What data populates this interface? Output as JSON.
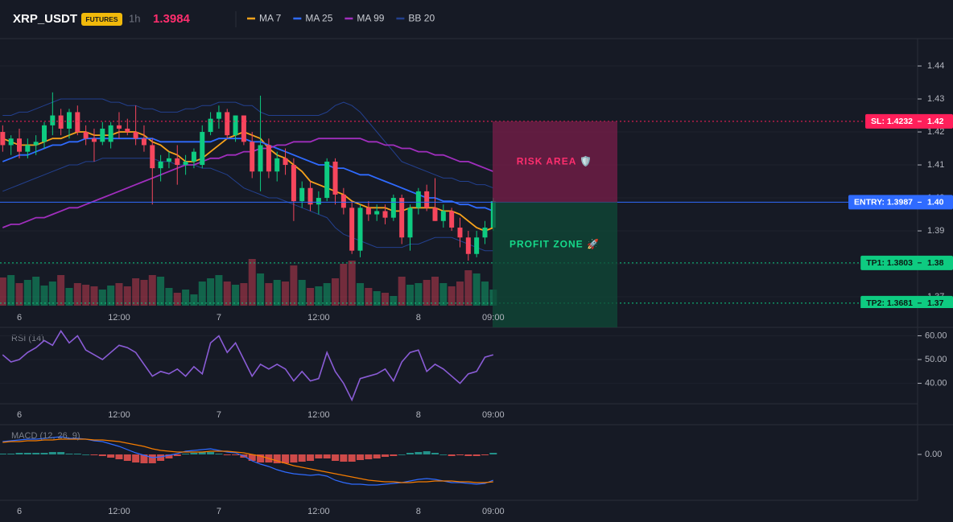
{
  "chart_data": [
    {
      "type": "candlestick",
      "title": "XRP_USDT",
      "badge": "FUTURES",
      "interval": "1h",
      "last_price": 1.3984,
      "last_price_color": "#ff2e6e",
      "categories": [
        null,
        null,
        "6",
        null,
        null,
        null,
        null,
        null,
        null,
        null,
        null,
        null,
        null,
        null,
        "12:00",
        null,
        null,
        null,
        null,
        null,
        null,
        null,
        null,
        null,
        null,
        null,
        "7",
        null,
        null,
        null,
        null,
        null,
        null,
        null,
        null,
        null,
        null,
        null,
        "12:00",
        null,
        null,
        null,
        null,
        null,
        null,
        null,
        null,
        null,
        null,
        null,
        "8",
        null,
        null,
        null,
        null,
        null,
        null,
        null,
        null,
        "09:00"
      ],
      "open": [
        1.42,
        1.416,
        1.418,
        1.414,
        1.416,
        1.417,
        1.422,
        1.425,
        1.421,
        1.426,
        1.42,
        1.418,
        1.417,
        1.417,
        1.422,
        1.421,
        1.42,
        1.418,
        1.416,
        1.409,
        1.411,
        1.412,
        1.41,
        1.411,
        1.41,
        1.42,
        1.424,
        1.426,
        1.419,
        1.425,
        1.417,
        1.408,
        1.416,
        1.408,
        1.412,
        1.41,
        1.399,
        1.403,
        1.398,
        1.4,
        1.411,
        1.401,
        1.397,
        1.384,
        1.397,
        1.395,
        1.396,
        1.394,
        1.4,
        1.388,
        1.397,
        1.402,
        1.397,
        1.393,
        1.396,
        1.391,
        1.388,
        1.383,
        1.388,
        1.391
      ],
      "high": [
        1.422,
        1.419,
        1.421,
        1.418,
        1.419,
        1.423,
        1.432,
        1.427,
        1.427,
        1.428,
        1.422,
        1.421,
        1.423,
        1.423,
        1.426,
        1.424,
        1.428,
        1.422,
        1.418,
        1.413,
        1.414,
        1.416,
        1.413,
        1.415,
        1.422,
        1.426,
        1.428,
        1.427,
        1.425,
        1.425,
        1.42,
        1.431,
        1.418,
        1.414,
        1.415,
        1.412,
        1.405,
        1.405,
        1.402,
        1.412,
        1.412,
        1.403,
        1.399,
        1.398,
        1.399,
        1.398,
        1.398,
        1.401,
        1.401,
        1.398,
        1.403,
        1.404,
        1.406,
        1.398,
        1.397,
        1.394,
        1.39,
        1.39,
        1.393,
        1.4
      ],
      "low": [
        1.414,
        1.413,
        1.412,
        1.412,
        1.413,
        1.415,
        1.419,
        1.419,
        1.418,
        1.419,
        1.416,
        1.411,
        1.416,
        1.415,
        1.418,
        1.419,
        1.416,
        1.414,
        1.398,
        1.405,
        1.409,
        1.404,
        1.407,
        1.409,
        1.409,
        1.419,
        1.421,
        1.418,
        1.417,
        1.416,
        1.406,
        1.402,
        1.406,
        1.405,
        1.407,
        1.393,
        1.397,
        1.396,
        1.395,
        1.399,
        1.398,
        1.395,
        1.383,
        1.382,
        1.393,
        1.393,
        1.392,
        1.393,
        1.386,
        1.384,
        1.395,
        1.396,
        1.393,
        1.391,
        1.39,
        1.385,
        1.381,
        1.382,
        1.386,
        1.39
      ],
      "close": [
        1.416,
        1.418,
        1.414,
        1.416,
        1.417,
        1.422,
        1.425,
        1.421,
        1.426,
        1.42,
        1.418,
        1.417,
        1.421,
        1.422,
        1.421,
        1.42,
        1.418,
        1.416,
        1.409,
        1.411,
        1.412,
        1.41,
        1.411,
        1.414,
        1.42,
        1.424,
        1.426,
        1.419,
        1.425,
        1.417,
        1.408,
        1.416,
        1.408,
        1.412,
        1.41,
        1.399,
        1.403,
        1.398,
        1.4,
        1.411,
        1.401,
        1.397,
        1.384,
        1.397,
        1.395,
        1.396,
        1.394,
        1.4,
        1.388,
        1.397,
        1.402,
        1.397,
        1.393,
        1.396,
        1.391,
        1.388,
        1.383,
        1.388,
        1.391,
        1.399
      ],
      "volume": [
        35,
        38,
        28,
        32,
        36,
        25,
        30,
        38,
        22,
        28,
        26,
        24,
        20,
        25,
        28,
        24,
        34,
        32,
        38,
        36,
        22,
        16,
        20,
        14,
        30,
        34,
        38,
        30,
        26,
        28,
        58,
        40,
        28,
        32,
        30,
        50,
        32,
        22,
        24,
        28,
        34,
        52,
        56,
        28,
        22,
        18,
        16,
        12,
        36,
        26,
        28,
        32,
        36,
        28,
        24,
        30,
        44,
        40,
        30,
        20
      ],
      "up_color": "#0ecb81",
      "down_color": "#f6465d",
      "series": [
        {
          "name": "MA 7",
          "color": "#f7a21b",
          "values": [
            1.418,
            1.417,
            1.416,
            1.416,
            1.416,
            1.417,
            1.418,
            1.418,
            1.419,
            1.42,
            1.42,
            1.419,
            1.419,
            1.419,
            1.42,
            1.42,
            1.42,
            1.419,
            1.417,
            1.416,
            1.414,
            1.413,
            1.411,
            1.411,
            1.412,
            1.414,
            1.416,
            1.418,
            1.419,
            1.42,
            1.419,
            1.418,
            1.415,
            1.413,
            1.412,
            1.41,
            1.408,
            1.405,
            1.404,
            1.403,
            1.402,
            1.401,
            1.399,
            1.398,
            1.397,
            1.397,
            1.397,
            1.396,
            1.396,
            1.397,
            1.397,
            1.397,
            1.397,
            1.396,
            1.396,
            1.395,
            1.393,
            1.391,
            1.39,
            1.391
          ]
        },
        {
          "name": "MA 25",
          "color": "#2f6bff",
          "values": [
            1.411,
            1.412,
            1.413,
            1.413,
            1.414,
            1.415,
            1.416,
            1.416,
            1.417,
            1.417,
            1.418,
            1.418,
            1.418,
            1.418,
            1.418,
            1.418,
            1.418,
            1.418,
            1.418,
            1.417,
            1.417,
            1.417,
            1.417,
            1.417,
            1.417,
            1.417,
            1.418,
            1.418,
            1.418,
            1.418,
            1.417,
            1.417,
            1.416,
            1.415,
            1.414,
            1.413,
            1.412,
            1.411,
            1.41,
            1.41,
            1.409,
            1.409,
            1.408,
            1.407,
            1.407,
            1.406,
            1.405,
            1.404,
            1.403,
            1.402,
            1.401,
            1.4,
            1.4,
            1.399,
            1.399,
            1.398,
            1.398,
            1.397,
            1.397,
            1.396
          ]
        },
        {
          "name": "MA 99",
          "color": "#a02ebd",
          "values": [
            1.391,
            1.392,
            1.392,
            1.393,
            1.394,
            1.394,
            1.395,
            1.396,
            1.397,
            1.397,
            1.398,
            1.399,
            1.4,
            1.401,
            1.402,
            1.403,
            1.404,
            1.405,
            1.406,
            1.407,
            1.408,
            1.409,
            1.41,
            1.41,
            1.411,
            1.412,
            1.412,
            1.413,
            1.413,
            1.414,
            1.414,
            1.415,
            1.415,
            1.416,
            1.416,
            1.417,
            1.417,
            1.417,
            1.418,
            1.418,
            1.418,
            1.418,
            1.418,
            1.418,
            1.417,
            1.417,
            1.416,
            1.416,
            1.415,
            1.415,
            1.414,
            1.414,
            1.413,
            1.413,
            1.412,
            1.411,
            1.411,
            1.41,
            1.409,
            1.408
          ]
        },
        {
          "name": "BB 20",
          "color": "#23408e",
          "upper": [
            1.425,
            1.425,
            1.426,
            1.426,
            1.427,
            1.428,
            1.429,
            1.43,
            1.43,
            1.43,
            1.43,
            1.43,
            1.43,
            1.429,
            1.429,
            1.428,
            1.428,
            1.427,
            1.427,
            1.426,
            1.426,
            1.426,
            1.427,
            1.427,
            1.428,
            1.428,
            1.429,
            1.429,
            1.429,
            1.428,
            1.428,
            1.426,
            1.425,
            1.425,
            1.425,
            1.425,
            1.425,
            1.425,
            1.425,
            1.426,
            1.428,
            1.429,
            1.428,
            1.426,
            1.423,
            1.42,
            1.417,
            1.414,
            1.411,
            1.41,
            1.409,
            1.408,
            1.407,
            1.406,
            1.406,
            1.405,
            1.405,
            1.404,
            1.404,
            1.403
          ],
          "lower": [
            1.402,
            1.403,
            1.404,
            1.405,
            1.406,
            1.407,
            1.408,
            1.409,
            1.41,
            1.41,
            1.411,
            1.411,
            1.412,
            1.412,
            1.412,
            1.412,
            1.412,
            1.412,
            1.412,
            1.411,
            1.411,
            1.41,
            1.41,
            1.41,
            1.409,
            1.409,
            1.408,
            1.407,
            1.405,
            1.403,
            1.402,
            1.401,
            1.4,
            1.4,
            1.399,
            1.398,
            1.397,
            1.396,
            1.395,
            1.394,
            1.391,
            1.389,
            1.388,
            1.387,
            1.386,
            1.385,
            1.385,
            1.385,
            1.385,
            1.386,
            1.386,
            1.387,
            1.388,
            1.388,
            1.388,
            1.387,
            1.386,
            1.385,
            1.384,
            1.384
          ]
        }
      ],
      "ylim": [
        1.3666,
        1.4483
      ],
      "yticks": [
        1.37,
        1.38,
        1.39,
        {
          "value": 1.4,
          "label": "1.40"
        },
        1.41,
        1.42,
        1.43,
        1.44
      ],
      "levels": [
        {
          "label": "SL: 1.4232",
          "value": 1.4232,
          "price_label": "1.42",
          "color": "#ff1f5a",
          "text_color": "#ffffff",
          "style": "dotted"
        },
        {
          "label": "ENTRY: 1.3987",
          "value": 1.3987,
          "price_label": "1.40",
          "color": "#2f6bff",
          "text_color": "#ffffff",
          "style": "solid"
        },
        {
          "label": "TP1: 1.3803",
          "value": 1.3803,
          "price_label": "1.38",
          "color": "#0ecb81",
          "text_color": "#0b1a14",
          "style": "dotted"
        },
        {
          "label": "TP2: 1.3681",
          "value": 1.3681,
          "price_label": "1.37",
          "color": "#0ecb81",
          "text_color": "#0b1a14",
          "style": "dotted"
        }
      ],
      "zones": [
        {
          "label": "RISK AREA 🛡️",
          "top": 1.4232,
          "bottom": 1.3987,
          "color": "#7a1d4a",
          "text_color": "#ff2e6e"
        },
        {
          "label": "PROFIT ZONE 🚀",
          "top": 1.3987,
          "color": "#0f4a37",
          "text_color": "#16d98a"
        }
      ]
    },
    {
      "type": "line",
      "title": "RSI (14)",
      "categories": [
        null,
        null,
        "6",
        null,
        null,
        null,
        null,
        null,
        null,
        null,
        null,
        null,
        null,
        null,
        "12:00",
        null,
        null,
        null,
        null,
        null,
        null,
        null,
        null,
        null,
        null,
        null,
        "7",
        null,
        null,
        null,
        null,
        null,
        null,
        null,
        null,
        null,
        null,
        null,
        "12:00",
        null,
        null,
        null,
        null,
        null,
        null,
        null,
        null,
        null,
        null,
        null,
        "8",
        null,
        null,
        null,
        null,
        null,
        null,
        null,
        null,
        "09:00"
      ],
      "color": "#8a5cd6",
      "values": [
        52,
        49,
        50,
        53,
        55,
        58,
        56,
        62,
        57,
        60,
        54,
        52,
        50,
        53,
        56,
        55,
        53,
        48,
        43,
        45,
        44,
        46,
        43,
        47,
        44,
        57,
        60,
        53,
        57,
        50,
        43,
        48,
        46,
        48,
        46,
        41,
        45,
        41,
        42,
        53,
        45,
        40,
        33,
        42,
        43,
        44,
        46,
        41,
        49,
        53,
        54,
        45,
        48,
        46,
        43,
        40,
        44,
        45,
        51,
        52
      ],
      "ylim": [
        31.4,
        63.2
      ],
      "yticks": [
        {
          "value": 40,
          "label": "40.00"
        },
        {
          "value": 50,
          "label": "50.00"
        },
        {
          "value": 60,
          "label": "60.00"
        }
      ]
    },
    {
      "type": "macd",
      "title": "MACD (12, 26, 9)",
      "categories": [
        null,
        null,
        "6",
        null,
        null,
        null,
        null,
        null,
        null,
        null,
        null,
        null,
        null,
        null,
        "12:00",
        null,
        null,
        null,
        null,
        null,
        null,
        null,
        null,
        null,
        null,
        null,
        "7",
        null,
        null,
        null,
        null,
        null,
        null,
        null,
        null,
        null,
        null,
        null,
        "12:00",
        null,
        null,
        null,
        null,
        null,
        null,
        null,
        null,
        null,
        null,
        null,
        "8",
        null,
        null,
        null,
        null,
        null,
        null,
        null,
        null,
        "09:00"
      ],
      "macd": {
        "color": "#2f6bff",
        "values": [
          0.0016,
          0.0017,
          0.0018,
          0.0019,
          0.0019,
          0.002,
          0.0021,
          0.0022,
          0.002,
          0.002,
          0.0019,
          0.0017,
          0.0016,
          0.0013,
          0.001,
          0.0006,
          0.0002,
          -0.0001,
          -0.0004,
          -0.0003,
          -0.0001,
          0.0001,
          0.0004,
          0.0005,
          0.0006,
          0.0007,
          0.0005,
          0.0003,
          0.0002,
          -0.0002,
          -0.0008,
          -0.0012,
          -0.0015,
          -0.0019,
          -0.0022,
          -0.0024,
          -0.0025,
          -0.0026,
          -0.0025,
          -0.0027,
          -0.0032,
          -0.0035,
          -0.0037,
          -0.0037,
          -0.0038,
          -0.0038,
          -0.0037,
          -0.0036,
          -0.0035,
          -0.0033,
          -0.0031,
          -0.003,
          -0.0031,
          -0.0033,
          -0.0035,
          -0.0035,
          -0.0036,
          -0.0037,
          -0.0036,
          -0.0032
        ]
      },
      "signal": {
        "color": "#f57c00",
        "values": [
          0.0015,
          0.0016,
          0.0016,
          0.0017,
          0.0017,
          0.0018,
          0.0018,
          0.0019,
          0.0019,
          0.0019,
          0.0019,
          0.0018,
          0.0018,
          0.0017,
          0.0016,
          0.0014,
          0.0012,
          0.001,
          0.0007,
          0.0005,
          0.0004,
          0.0003,
          0.0003,
          0.0003,
          0.0003,
          0.0004,
          0.0004,
          0.0004,
          0.0003,
          0.0002,
          0.0,
          -0.0002,
          -0.0005,
          -0.0008,
          -0.0011,
          -0.0014,
          -0.0016,
          -0.0018,
          -0.002,
          -0.0022,
          -0.0024,
          -0.0026,
          -0.0028,
          -0.003,
          -0.0032,
          -0.0033,
          -0.0034,
          -0.0034,
          -0.0035,
          -0.0035,
          -0.0034,
          -0.0034,
          -0.0033,
          -0.0033,
          -0.0033,
          -0.0034,
          -0.0034,
          -0.0035,
          -0.0035,
          -0.0034
        ]
      },
      "histogram": {
        "up_color": "#26a69a",
        "down_color": "#ef5350",
        "values": [
          0.0001,
          0.0001,
          0.0002,
          0.0002,
          0.0002,
          0.0002,
          0.0003,
          0.0003,
          0.0001,
          0.0001,
          0.0,
          -0.0001,
          -0.0002,
          -0.0004,
          -0.0006,
          -0.0008,
          -0.001,
          -0.0011,
          -0.0011,
          -0.0008,
          -0.0005,
          -0.0002,
          0.0001,
          0.0002,
          0.0003,
          0.0003,
          0.0001,
          -0.0001,
          -0.0001,
          -0.0004,
          -0.0008,
          -0.001,
          -0.001,
          -0.0011,
          -0.0011,
          -0.001,
          -0.0009,
          -0.0008,
          -0.0005,
          -0.0005,
          -0.0008,
          -0.0009,
          -0.0009,
          -0.0007,
          -0.0006,
          -0.0005,
          -0.0003,
          -0.0002,
          0.0,
          0.0002,
          0.0003,
          0.0004,
          0.0002,
          0.0,
          -0.0002,
          -0.0001,
          -0.0002,
          -0.0002,
          -0.0001,
          0.0002
        ]
      },
      "ylim": [
        -0.0057,
        0.0035
      ],
      "yticks": [
        {
          "value": 0,
          "label": "0.00"
        }
      ]
    }
  ]
}
